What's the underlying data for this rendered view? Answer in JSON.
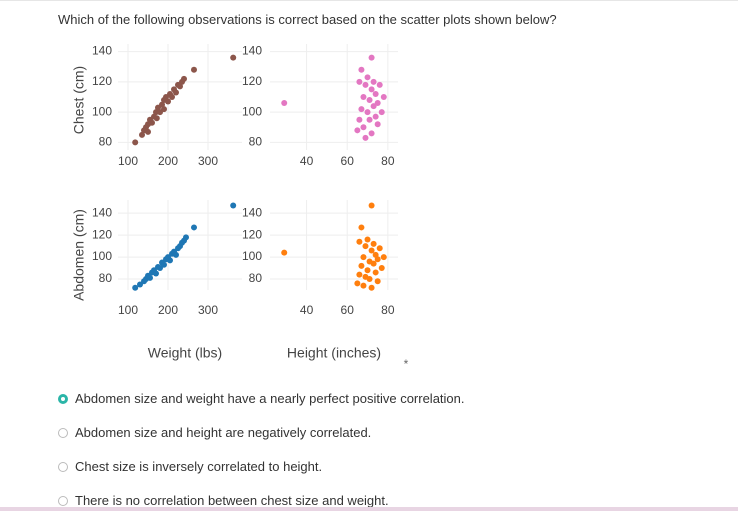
{
  "question": "Which of the following observations is correct based on the scatter plots shown below?",
  "facets": {
    "row_titles": [
      "Chest (cm)",
      "Abdomen (cm)"
    ],
    "column_titles": [
      "Weight (lbs)",
      "Height (inches)"
    ],
    "marker": "*"
  },
  "chart_data": [
    {
      "type": "scatter",
      "color": "#8c564b",
      "xlim": [
        75,
        385
      ],
      "ylim": [
        75,
        145
      ],
      "xticks": [
        100,
        200,
        300
      ],
      "yticks": [
        80,
        100,
        120,
        140
      ],
      "grid": true,
      "x": [
        118,
        135,
        140,
        145,
        150,
        150,
        155,
        160,
        165,
        170,
        172,
        175,
        180,
        185,
        190,
        190,
        195,
        200,
        205,
        210,
        215,
        220,
        225,
        230,
        235,
        240,
        265,
        363
      ],
      "y": [
        80,
        85,
        88,
        90,
        92,
        87,
        95,
        93,
        97,
        100,
        96,
        103,
        100,
        105,
        108,
        102,
        110,
        107,
        112,
        110,
        115,
        113,
        118,
        117,
        120,
        122,
        128,
        136
      ]
    },
    {
      "type": "scatter",
      "color": "#e377c2",
      "xlim": [
        22,
        85
      ],
      "ylim": [
        75,
        145
      ],
      "xticks": [
        40,
        60,
        80
      ],
      "yticks": [
        80,
        100,
        120,
        140
      ],
      "grid": true,
      "x": [
        65,
        66,
        67,
        68,
        68,
        69,
        70,
        70,
        71,
        71,
        72,
        72,
        73,
        73,
        74,
        74,
        75,
        75,
        76,
        77,
        78,
        66,
        69,
        29,
        72,
        67
      ],
      "y": [
        88,
        95,
        102,
        110,
        90,
        118,
        100,
        123,
        95,
        108,
        115,
        86,
        104,
        120,
        97,
        112,
        92,
        106,
        118,
        100,
        110,
        120,
        83,
        106,
        136,
        128
      ]
    },
    {
      "type": "scatter",
      "color": "#1f77b4",
      "xlim": [
        75,
        385
      ],
      "ylim": [
        70,
        152
      ],
      "xticks": [
        100,
        200,
        300
      ],
      "yticks": [
        80,
        100,
        120,
        140
      ],
      "grid": true,
      "x": [
        118,
        130,
        140,
        145,
        150,
        155,
        160,
        165,
        170,
        175,
        180,
        185,
        190,
        195,
        200,
        205,
        210,
        215,
        220,
        225,
        230,
        235,
        240,
        245,
        265,
        363
      ],
      "y": [
        72,
        75,
        78,
        80,
        83,
        81,
        86,
        88,
        85,
        91,
        90,
        95,
        93,
        98,
        100,
        97,
        103,
        105,
        102,
        108,
        110,
        113,
        115,
        118,
        127,
        147
      ]
    },
    {
      "type": "scatter",
      "color": "#ff7f0e",
      "xlim": [
        22,
        85
      ],
      "ylim": [
        70,
        152
      ],
      "xticks": [
        40,
        60,
        80
      ],
      "yticks": [
        80,
        100,
        120,
        140
      ],
      "grid": true,
      "x": [
        65,
        66,
        67,
        68,
        68,
        69,
        70,
        70,
        71,
        71,
        72,
        72,
        73,
        73,
        74,
        74,
        75,
        75,
        76,
        77,
        78,
        66,
        69,
        29,
        72,
        67
      ],
      "y": [
        76,
        84,
        92,
        100,
        74,
        110,
        88,
        116,
        80,
        96,
        106,
        72,
        94,
        112,
        86,
        102,
        78,
        98,
        108,
        90,
        100,
        114,
        82,
        104,
        147,
        127
      ]
    }
  ],
  "options": [
    "Abdomen size and weight have a nearly perfect positive correlation.",
    "Abdomen size and height are negatively correlated.",
    "Chest size is inversely correlated to height.",
    "There is no correlation between chest size and weight."
  ],
  "selected": 0
}
